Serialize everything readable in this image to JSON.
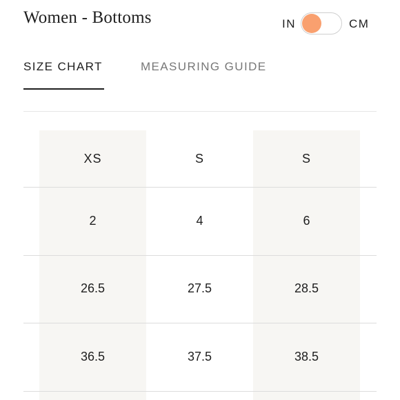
{
  "header": {
    "title": "Women - Bottoms",
    "unit_toggle": {
      "left_label": "IN",
      "right_label": "CM",
      "selected": "IN",
      "knob_color": "#f9a06f"
    }
  },
  "tabs": [
    {
      "label": "SIZE CHART",
      "active": true
    },
    {
      "label": "MEASURING GUIDE",
      "active": false
    }
  ],
  "size_table": {
    "header_row": [
      "XS",
      "S",
      "S"
    ],
    "rows": [
      [
        "2",
        "4",
        "6"
      ],
      [
        "26.5",
        "27.5",
        "28.5"
      ],
      [
        "36.5",
        "37.5",
        "38.5"
      ]
    ],
    "shade_color": "#f7f6f3"
  }
}
